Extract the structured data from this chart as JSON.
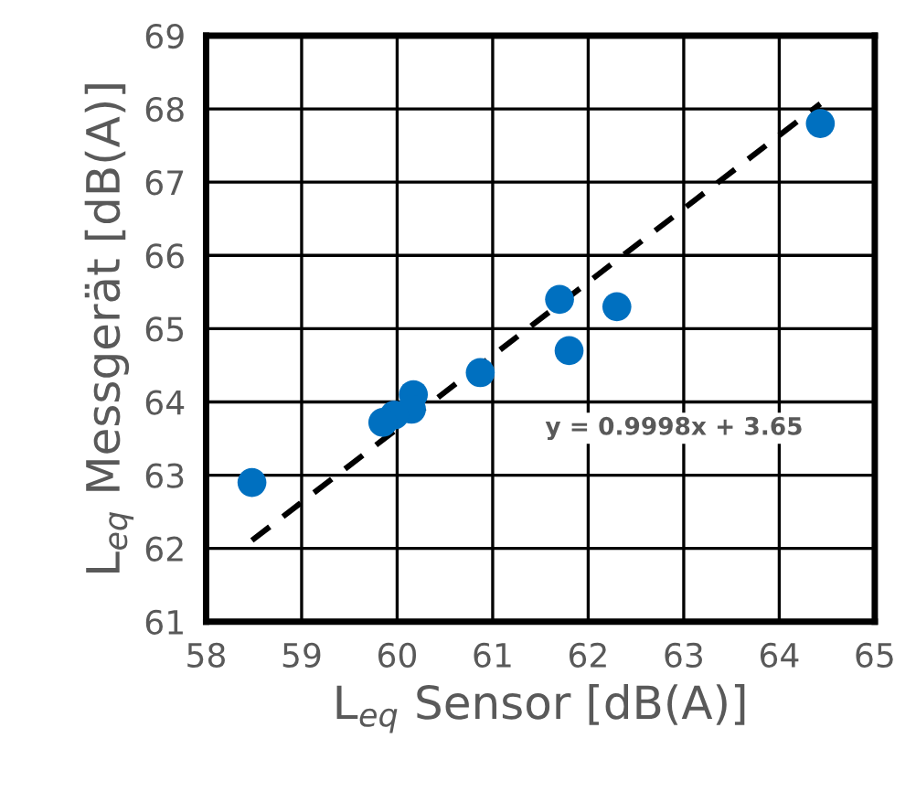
{
  "chart_data": {
    "type": "scatter",
    "xlabel": "L$_{eq}$ Sensor [dB(A)]",
    "ylabel": "L$_{eq}$ Messgerät [dB(A)]",
    "series": [
      {
        "color": "#0070c0",
        "x": [
          58.48,
          64.43,
          61.7,
          62.3,
          61.8,
          60.87,
          60.17,
          60.15,
          59.97,
          59.85
        ],
        "values": [
          62.9,
          67.8,
          65.4,
          65.3,
          64.7,
          64.4,
          64.1,
          63.9,
          63.82,
          63.72
        ]
      },
      {
        "type": "line",
        "color": "#000000",
        "line_style": "dashed",
        "x": [
          58.48,
          64.43
        ],
        "values": [
          62.11,
          68.07
        ]
      }
    ],
    "annotations": [
      "y = 0.9998x + 3.65"
    ],
    "xlim": [
      58,
      65
    ],
    "ylim": [
      61,
      69
    ],
    "xticks": [
      58,
      59,
      60,
      61,
      62,
      63,
      64,
      65
    ],
    "yticks": [
      61,
      62,
      63,
      64,
      65,
      66,
      67,
      68,
      69
    ],
    "grid": true,
    "legend": false
  }
}
